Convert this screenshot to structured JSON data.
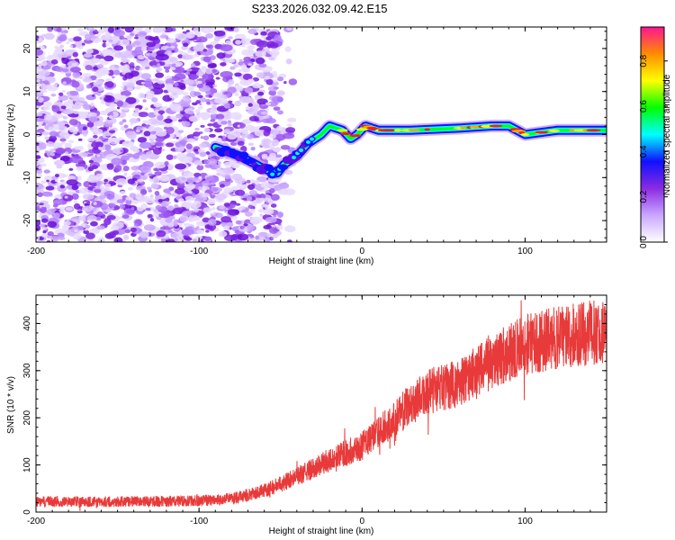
{
  "title": "S233.2026.032.09.42.E15",
  "chart_data": [
    {
      "type": "heatmap",
      "name": "spectrogram",
      "xlabel": "Height of straight line (km)",
      "ylabel": "Frequency (Hz)",
      "xlim": [
        -200,
        150
      ],
      "ylim": [
        -25,
        25
      ],
      "xticks": [
        "-200",
        "-100",
        "0",
        "100"
      ],
      "xtick_values": [
        -200,
        -100,
        0,
        100
      ],
      "yticks": [
        "20",
        "10",
        "0",
        "-10",
        "-20"
      ],
      "ytick_values": [
        20,
        10,
        0,
        -10,
        -20
      ],
      "colorbar": {
        "label": "Normalized spectral amplitude",
        "range": [
          0,
          0.95
        ],
        "ticks": [
          "0.0",
          "0.2",
          "0.4",
          "0.6",
          "0.8"
        ],
        "tick_values": [
          0.0,
          0.2,
          0.4,
          0.6,
          0.8
        ],
        "colors": [
          "#ffffff",
          "#c9a6ff",
          "#8a2be2",
          "#1010ff",
          "#00ffff",
          "#00ff00",
          "#ffff00",
          "#ff8c00",
          "#ff1493"
        ]
      },
      "noise_region_x": [
        -200,
        -50
      ],
      "signal_track": {
        "x": [
          -90,
          -75,
          -60,
          -52,
          -48,
          -40,
          -33,
          -25,
          -20,
          -12,
          -7,
          -3,
          2,
          10,
          30,
          60,
          80,
          90,
          100,
          120,
          150
        ],
        "freq": [
          -3,
          -5,
          -8,
          -9,
          -7,
          -5,
          -2,
          0,
          2,
          1,
          -1,
          0,
          2,
          1,
          1,
          1.5,
          2,
          2,
          0,
          1,
          1
        ]
      }
    },
    {
      "type": "line",
      "name": "snr",
      "xlabel": "Height of straight line (km)",
      "ylabel": "SNR (10 * v/v)",
      "xlim": [
        -200,
        150
      ],
      "ylim": [
        0,
        460
      ],
      "xticks": [
        "-200",
        "-100",
        "0",
        "100"
      ],
      "xtick_values": [
        -200,
        -100,
        0,
        100
      ],
      "yticks": [
        "0",
        "100",
        "200",
        "300",
        "400"
      ],
      "ytick_values": [
        0,
        100,
        200,
        300,
        400
      ],
      "line_color": "#e83a3a",
      "trend": {
        "x": [
          -200,
          -150,
          -100,
          -80,
          -60,
          -40,
          -20,
          0,
          20,
          40,
          60,
          80,
          100,
          120,
          150
        ],
        "y": [
          22,
          22,
          24,
          28,
          45,
          75,
          110,
          140,
          200,
          255,
          275,
          320,
          355,
          370,
          385
        ]
      }
    }
  ]
}
